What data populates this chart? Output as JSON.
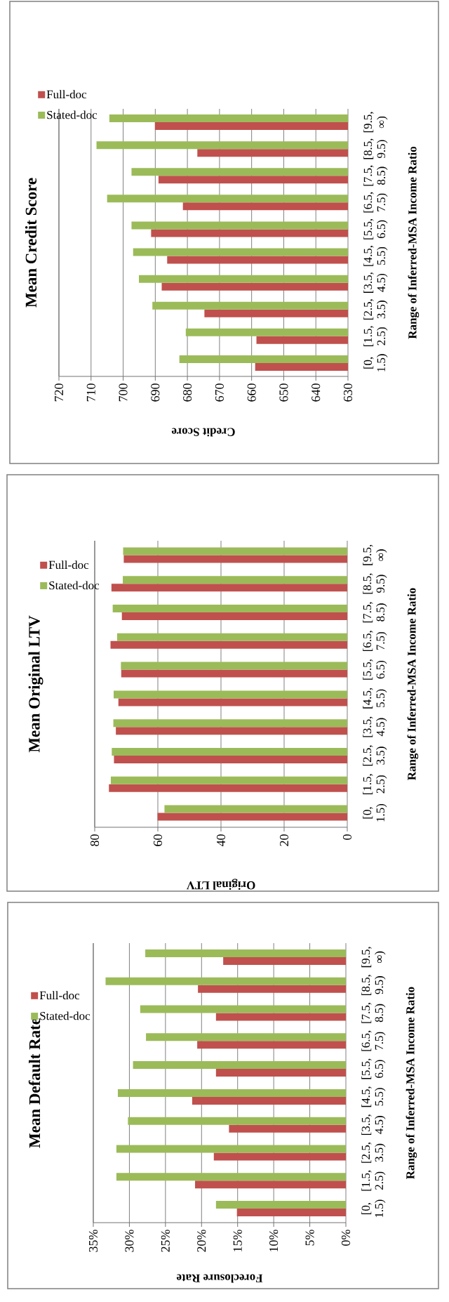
{
  "chart_data": [
    {
      "type": "bar",
      "orientation": "horizontal",
      "title": "Mean Default Rate",
      "xlabel": "Foreclosure Rate",
      "ylabel": "Range of Inferred-MSA Income Ratio",
      "categories": [
        "[9.5, ∞)",
        "[8.5, 9.5)",
        "[7.5, 8.5)",
        "[6.5, 7.5)",
        "[5.5, 6.5)",
        "[4.5, 5.5)",
        "[3.5, 4.5)",
        "[2.5, 3.5)",
        "[1.5, 2.5)",
        "[0, 1.5)"
      ],
      "series": [
        {
          "name": "Full-doc",
          "color": "#c0504d",
          "values": [
            17.0,
            20.5,
            18.0,
            20.6,
            18.0,
            21.3,
            16.2,
            18.3,
            20.9,
            15.1
          ]
        },
        {
          "name": "Stated-doc",
          "color": "#9bbb59",
          "values": [
            27.8,
            33.3,
            28.5,
            27.7,
            29.5,
            31.6,
            30.2,
            31.8,
            31.8,
            18.0
          ]
        }
      ],
      "xlim": [
        35,
        0
      ],
      "xticks": [
        {
          "value": 35,
          "label": "35%"
        },
        {
          "value": 30,
          "label": "30%"
        },
        {
          "value": 25,
          "label": "25%"
        },
        {
          "value": 20,
          "label": "20%"
        },
        {
          "value": 15,
          "label": "15%"
        },
        {
          "value": 10,
          "label": "10%"
        },
        {
          "value": 5,
          "label": "5%"
        },
        {
          "value": 0,
          "label": "0%"
        }
      ],
      "grid": "x",
      "legend": "top left"
    },
    {
      "type": "bar",
      "orientation": "horizontal",
      "title": "Mean Original LTV",
      "xlabel": "Original LTV",
      "ylabel": "Range of Inferred-MSA Income Ratio",
      "categories": [
        "[9.5, ∞)",
        "[8.5, 9.5)",
        "[7.5, 8.5)",
        "[6.5, 7.5)",
        "[5.5, 6.5)",
        "[4.5, 5.5)",
        "[3.5, 4.5)",
        "[2.5, 3.5)",
        "[1.5, 2.5)",
        "[0, 1.5)"
      ],
      "series": [
        {
          "name": "Full-doc",
          "color": "#c0504d",
          "values": [
            70.8,
            74.7,
            71.4,
            75.0,
            71.6,
            72.5,
            73.3,
            73.9,
            75.5,
            60.1
          ]
        },
        {
          "name": "Stated-doc",
          "color": "#9bbb59",
          "values": [
            71.0,
            71.1,
            74.3,
            72.9,
            71.7,
            74.0,
            74.1,
            74.6,
            74.9,
            57.9
          ]
        }
      ],
      "xlim": [
        80,
        0
      ],
      "xticks": [
        80,
        60,
        40,
        20,
        0
      ],
      "grid": "x",
      "legend": "top left"
    },
    {
      "type": "bar",
      "orientation": "horizontal",
      "title": "Mean Credit Score",
      "xlabel": "Credit Score",
      "ylabel": "Range of Inferred-MSA Income Ratio",
      "categories": [
        "[9.5, ∞)",
        "[8.5, 9.5)",
        "[7.5, 8.5)",
        "[6.5, 7.5)",
        "[5.5, 6.5)",
        "[4.5, 5.5)",
        "[3.5, 4.5)",
        "[2.5, 3.5)",
        "[1.5, 2.5)",
        "[0, 1.5)"
      ],
      "series": [
        {
          "name": "Full-doc",
          "color": "#c0504d",
          "values": [
            690.1,
            676.9,
            689.0,
            681.4,
            691.3,
            686.3,
            688.0,
            674.7,
            658.5,
            658.9
          ]
        },
        {
          "name": "Stated-doc",
          "color": "#9bbb59",
          "values": [
            704.3,
            708.3,
            697.4,
            705.0,
            697.4,
            696.9,
            695.1,
            690.9,
            680.5,
            682.5
          ]
        }
      ],
      "xlim": [
        720,
        630
      ],
      "xticks": [
        720,
        710,
        700,
        690,
        680,
        670,
        660,
        650,
        640,
        630
      ],
      "grid": "x",
      "legend": "top left"
    }
  ]
}
